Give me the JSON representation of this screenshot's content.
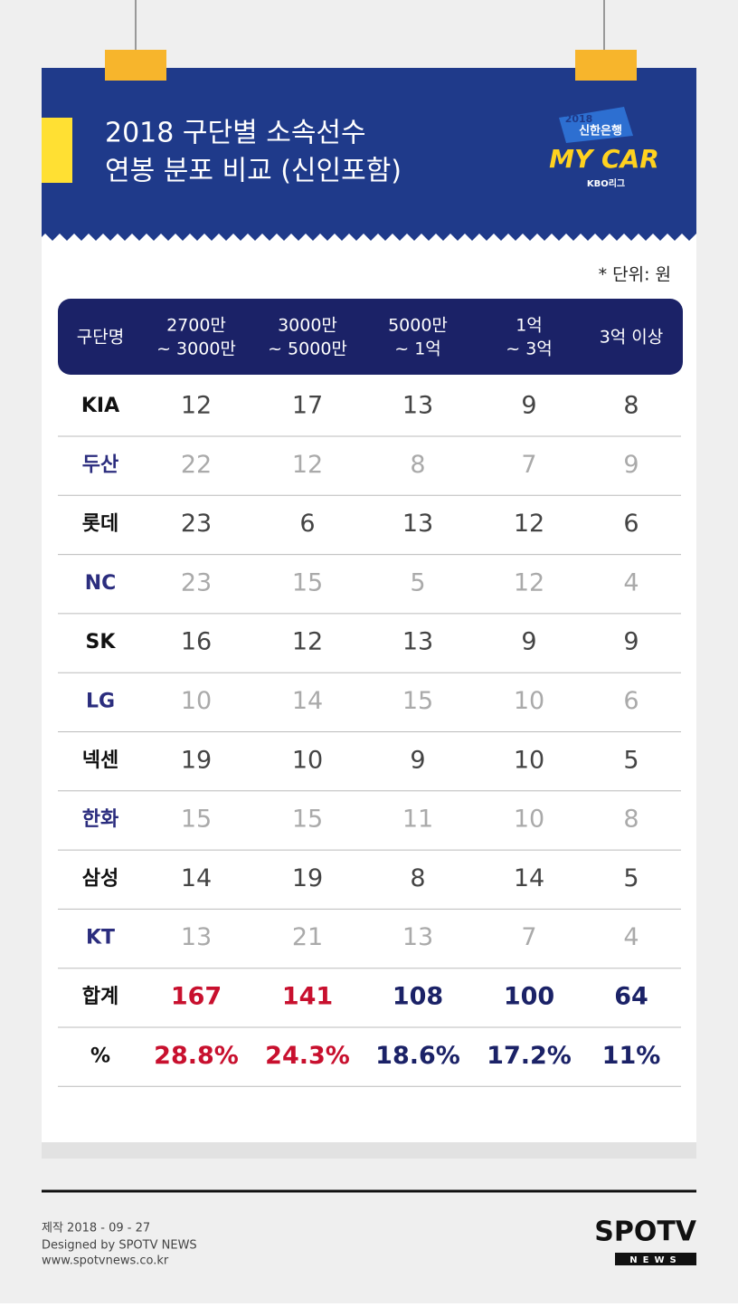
{
  "header": {
    "title": [
      "2018 구단별 소속선수",
      "연봉 분포 비교 (신인포함)"
    ],
    "logo": {
      "year": "2018",
      "bank": "신한은행",
      "name": "MY CAR",
      "league": "KBO리그"
    }
  },
  "unit_note": "* 단위: 원",
  "table": {
    "columns": [
      [
        "구단명"
      ],
      [
        "2700만",
        "~ 3000만"
      ],
      [
        "3000만",
        "~ 5000만"
      ],
      [
        "5000만",
        "~ 1억"
      ],
      [
        "1억",
        "~ 3억"
      ],
      [
        "3억 이상"
      ]
    ],
    "rows": [
      [
        "KIA",
        "12",
        "17",
        "13",
        "9",
        "8"
      ],
      [
        "두산",
        "22",
        "12",
        "8",
        "7",
        "9"
      ],
      [
        "롯데",
        "23",
        "6",
        "13",
        "12",
        "6"
      ],
      [
        "NC",
        "23",
        "15",
        "5",
        "12",
        "4"
      ],
      [
        "SK",
        "16",
        "12",
        "13",
        "9",
        "9"
      ],
      [
        "LG",
        "10",
        "14",
        "15",
        "10",
        "6"
      ],
      [
        "넥센",
        "19",
        "10",
        "9",
        "10",
        "5"
      ],
      [
        "한화",
        "15",
        "15",
        "11",
        "10",
        "8"
      ],
      [
        "삼성",
        "14",
        "19",
        "8",
        "14",
        "5"
      ],
      [
        "KT",
        "13",
        "21",
        "13",
        "7",
        "4"
      ]
    ],
    "total": [
      "합계",
      "167",
      "141",
      "108",
      "100",
      "64"
    ],
    "percent": [
      "%",
      "28.8%",
      "24.3%",
      "18.6%",
      "17.2%",
      "11%"
    ]
  },
  "footer": {
    "lines": [
      "제작 2018 - 09 - 27",
      "Designed by SPOTV NEWS",
      "www.spotvnews.co.kr"
    ],
    "logo": {
      "main": "SPOTV",
      "sub": "NEWS"
    }
  }
}
